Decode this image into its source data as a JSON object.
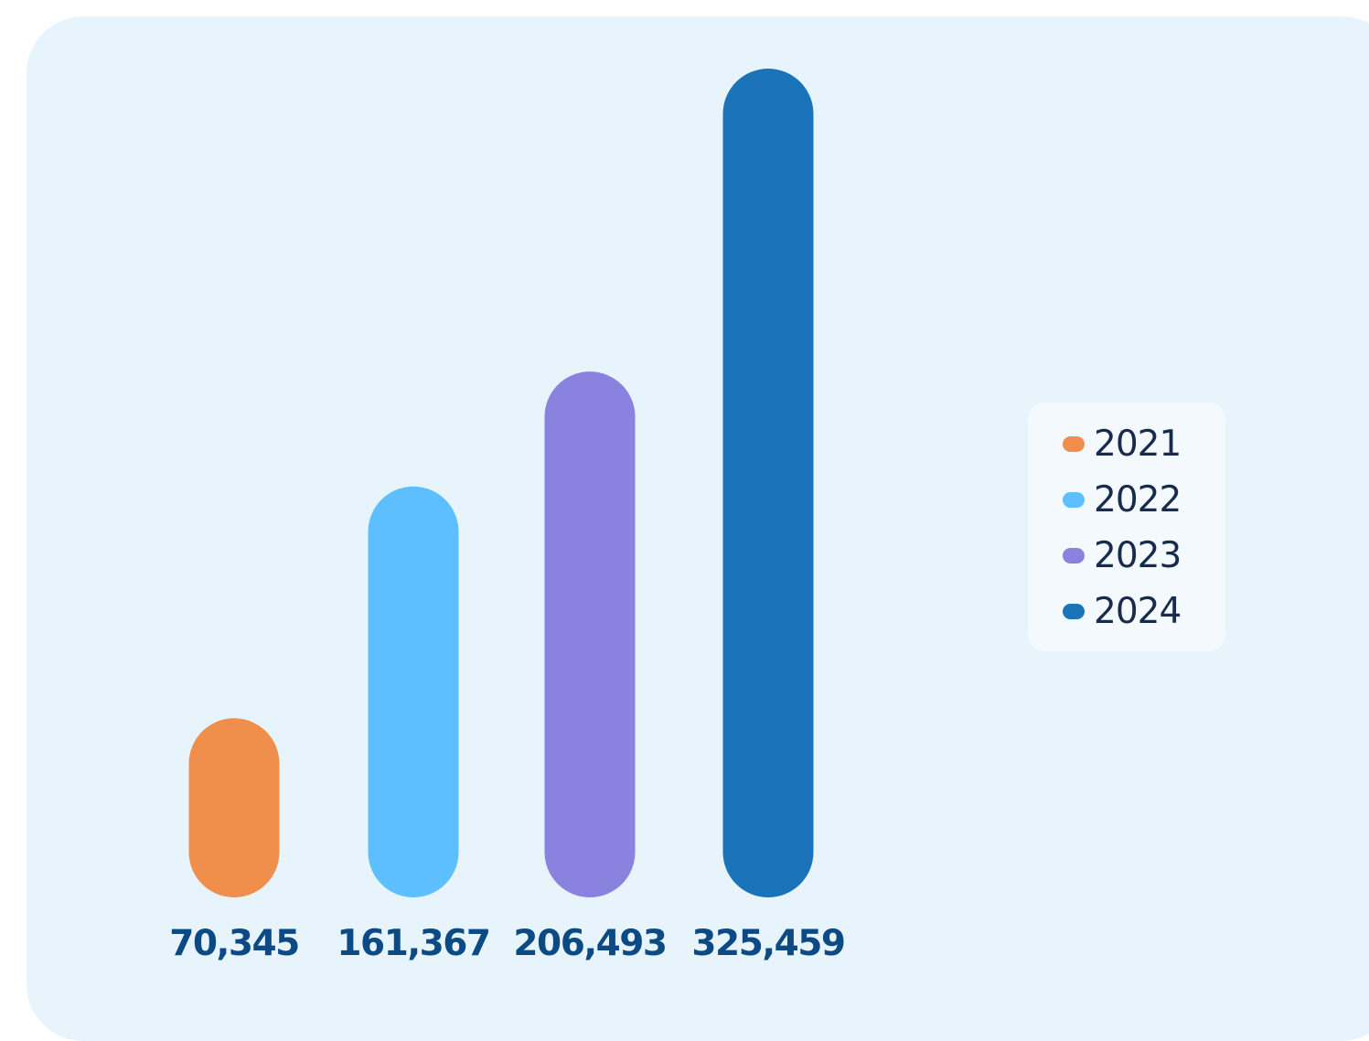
{
  "chart_data": {
    "type": "bar",
    "categories": [
      "2021",
      "2022",
      "2023",
      "2024"
    ],
    "values": [
      70345,
      161367,
      206493,
      325459
    ],
    "value_labels": [
      "70,345",
      "161,367",
      "206,493",
      "325,459"
    ],
    "colors": [
      "#ef8f4b",
      "#5dbffd",
      "#8982df",
      "#1b74b9"
    ],
    "ylim": [
      0,
      325459
    ],
    "grid": false,
    "legend": {
      "placement": "right",
      "entries": [
        "2021",
        "2022",
        "2023",
        "2024"
      ]
    }
  }
}
